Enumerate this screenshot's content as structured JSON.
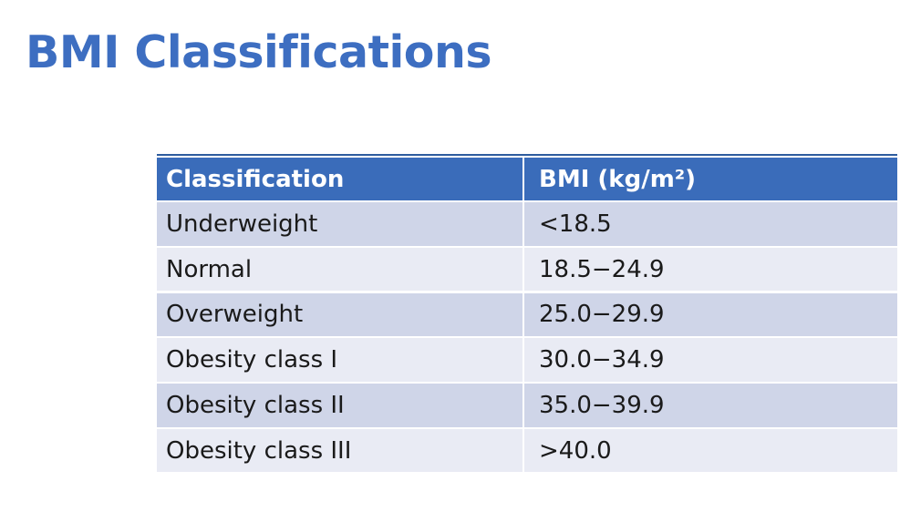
{
  "slide": {
    "title": "BMI Classifications"
  },
  "table": {
    "headers": [
      "Classification",
      "BMI (kg/m²)"
    ],
    "rows": [
      [
        "Underweight",
        "<18.5"
      ],
      [
        "Normal",
        "18.5−24.9"
      ],
      [
        "Overweight",
        "25.0−29.9"
      ],
      [
        "Obesity class I",
        "30.0−34.9"
      ],
      [
        "Obesity class II",
        "35.0−39.9"
      ],
      [
        "Obesity class III",
        ">40.0"
      ]
    ]
  },
  "chart_data": {
    "type": "table",
    "title": "BMI Classifications",
    "columns": [
      "Classification",
      "BMI (kg/m²)"
    ],
    "rows": [
      [
        "Underweight",
        "<18.5"
      ],
      [
        "Normal",
        "18.5−24.9"
      ],
      [
        "Overweight",
        "25.0−29.9"
      ],
      [
        "Obesity class I",
        "30.0−34.9"
      ],
      [
        "Obesity class II",
        "35.0−39.9"
      ],
      [
        "Obesity class III",
        ">40.0"
      ]
    ]
  },
  "colors": {
    "title": "#3D6EC1",
    "header_bg": "#3A6CBA",
    "header_top_line": "#2E5C9E",
    "row_band_dark": "#CFD5E8",
    "row_band_light": "#E9EBF4",
    "header_text": "#FFFFFF",
    "body_text": "#1A1A1A",
    "slide_bg": "#FFFFFF"
  }
}
